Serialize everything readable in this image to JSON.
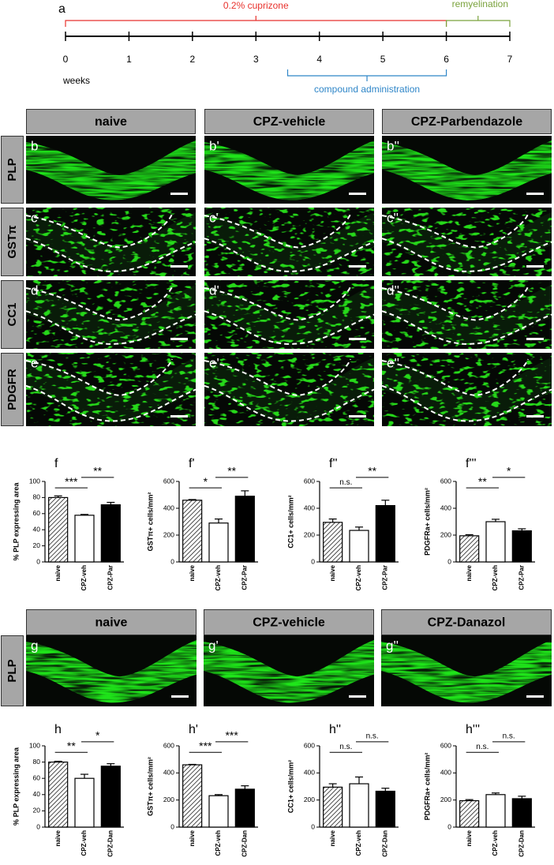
{
  "timeline": {
    "label": "a",
    "xlim": [
      0,
      7
    ],
    "xticks": [
      0,
      1,
      2,
      3,
      4,
      5,
      6,
      7
    ],
    "unit": "weeks",
    "ranges": [
      {
        "label": "0.2% cuprizone",
        "start": 0,
        "end": 6,
        "color": "#e8322d",
        "position": "above"
      },
      {
        "label": "remyelination",
        "start": 6,
        "end": 7,
        "color": "#7aa23c",
        "position": "above"
      },
      {
        "label": "compound administration",
        "start": 3.5,
        "end": 6,
        "color": "#2f86c8",
        "position": "below"
      }
    ]
  },
  "image_grids": [
    {
      "columns": [
        "naive",
        "CPZ-vehicle",
        "CPZ-Parbendazole"
      ],
      "rows": [
        {
          "label": "PLP",
          "panels": [
            "b",
            "b'",
            "b''"
          ],
          "outlined": false
        },
        {
          "label": "GSTπ",
          "panels": [
            "c",
            "c'",
            "c''"
          ],
          "outlined": true
        },
        {
          "label": "CC1",
          "panels": [
            "d",
            "d'",
            "d''"
          ],
          "outlined": true
        },
        {
          "label": "PDGFR",
          "panels": [
            "e",
            "e'",
            "e''"
          ],
          "outlined": true
        }
      ]
    },
    {
      "columns": [
        "naive",
        "CPZ-vehicle",
        "CPZ-Danazol"
      ],
      "rows": [
        {
          "label": "PLP",
          "panels": [
            "g",
            "g'",
            "g''"
          ],
          "outlined": false
        }
      ]
    }
  ],
  "chart_data": [
    {
      "type": "bar",
      "label": "f",
      "ylabel": "% PLP expressing area",
      "categories": [
        "naive",
        "CPZ-veh",
        "CPZ-Par"
      ],
      "values": [
        80,
        58,
        71
      ],
      "errors": [
        2,
        1,
        3
      ],
      "colors": [
        "#ffffff",
        "#ffffff",
        "#000000"
      ],
      "hatch": [
        true,
        false,
        false
      ],
      "ylim": [
        0,
        100
      ],
      "yticks": [
        0,
        20,
        40,
        60,
        80,
        100
      ],
      "annotations": [
        {
          "text": "***",
          "from": 0,
          "to": 1
        },
        {
          "text": "**",
          "from": 1,
          "to": 2
        }
      ]
    },
    {
      "type": "bar",
      "label": "f'",
      "ylabel": "GSTπ+ cells/mm²",
      "categories": [
        "naive",
        "CPZ-veh",
        "CPZ-Par"
      ],
      "values": [
        460,
        290,
        490
      ],
      "errors": [
        5,
        30,
        40
      ],
      "colors": [
        "#ffffff",
        "#ffffff",
        "#000000"
      ],
      "hatch": [
        true,
        false,
        false
      ],
      "ylim": [
        0,
        600
      ],
      "yticks": [
        0,
        200,
        400,
        600
      ],
      "annotations": [
        {
          "text": "*",
          "from": 0,
          "to": 1
        },
        {
          "text": "**",
          "from": 1,
          "to": 2
        }
      ]
    },
    {
      "type": "bar",
      "label": "f''",
      "ylabel": "CC1+ cells/mm²",
      "categories": [
        "naive",
        "CPZ-veh",
        "CPZ-Par"
      ],
      "values": [
        295,
        235,
        420
      ],
      "errors": [
        25,
        25,
        40
      ],
      "colors": [
        "#ffffff",
        "#ffffff",
        "#000000"
      ],
      "hatch": [
        true,
        false,
        false
      ],
      "ylim": [
        0,
        600
      ],
      "yticks": [
        0,
        200,
        400,
        600
      ],
      "annotations": [
        {
          "text": "n.s.",
          "from": 0,
          "to": 1
        },
        {
          "text": "**",
          "from": 1,
          "to": 2
        }
      ]
    },
    {
      "type": "bar",
      "label": "f'''",
      "ylabel": "PDGFRa+ cells/mm²",
      "categories": [
        "naive",
        "CPZ-veh",
        "CPZ-Par"
      ],
      "values": [
        195,
        300,
        232
      ],
      "errors": [
        8,
        18,
        15
      ],
      "colors": [
        "#ffffff",
        "#ffffff",
        "#000000"
      ],
      "hatch": [
        true,
        false,
        false
      ],
      "ylim": [
        0,
        600
      ],
      "yticks": [
        0,
        200,
        400,
        600
      ],
      "annotations": [
        {
          "text": "**",
          "from": 0,
          "to": 1
        },
        {
          "text": "*",
          "from": 1,
          "to": 2
        }
      ]
    },
    {
      "type": "bar",
      "label": "h",
      "ylabel": "% PLP expressing area",
      "categories": [
        "naive",
        "CPZ-veh",
        "CPZ-Dan"
      ],
      "values": [
        80,
        60,
        75
      ],
      "errors": [
        1,
        5,
        3
      ],
      "colors": [
        "#ffffff",
        "#ffffff",
        "#000000"
      ],
      "hatch": [
        true,
        false,
        false
      ],
      "ylim": [
        0,
        100
      ],
      "yticks": [
        0,
        20,
        40,
        60,
        80,
        100
      ],
      "annotations": [
        {
          "text": "**",
          "from": 0,
          "to": 1
        },
        {
          "text": "*",
          "from": 1,
          "to": 2
        }
      ]
    },
    {
      "type": "bar",
      "label": "h'",
      "ylabel": "GSTπ+ cells/mm²",
      "categories": [
        "naive",
        "CPZ-veh",
        "CPZ-Dan"
      ],
      "values": [
        460,
        232,
        280
      ],
      "errors": [
        3,
        8,
        25
      ],
      "colors": [
        "#ffffff",
        "#ffffff",
        "#000000"
      ],
      "hatch": [
        true,
        false,
        false
      ],
      "ylim": [
        0,
        600
      ],
      "yticks": [
        0,
        200,
        400,
        600
      ],
      "annotations": [
        {
          "text": "***",
          "from": 0,
          "to": 1
        },
        {
          "text": "***",
          "from": 1,
          "to": 2
        }
      ]
    },
    {
      "type": "bar",
      "label": "h''",
      "ylabel": "CC1+ cells/mm²",
      "categories": [
        "naive",
        "CPZ-veh",
        "CPZ-Dan"
      ],
      "values": [
        295,
        320,
        265
      ],
      "errors": [
        25,
        50,
        22
      ],
      "colors": [
        "#ffffff",
        "#ffffff",
        "#000000"
      ],
      "hatch": [
        true,
        false,
        false
      ],
      "ylim": [
        0,
        600
      ],
      "yticks": [
        0,
        200,
        400,
        600
      ],
      "annotations": [
        {
          "text": "n.s.",
          "from": 0,
          "to": 1
        },
        {
          "text": "n.s.",
          "from": 1,
          "to": 2
        }
      ]
    },
    {
      "type": "bar",
      "label": "h'''",
      "ylabel": "PDGFRa+ cells/mm²",
      "categories": [
        "naive",
        "CPZ-veh",
        "CPZ-Dan"
      ],
      "values": [
        195,
        240,
        210
      ],
      "errors": [
        8,
        12,
        18
      ],
      "colors": [
        "#ffffff",
        "#ffffff",
        "#000000"
      ],
      "hatch": [
        true,
        false,
        false
      ],
      "ylim": [
        0,
        600
      ],
      "yticks": [
        0,
        200,
        400,
        600
      ],
      "annotations": [
        {
          "text": "n.s.",
          "from": 0,
          "to": 1
        },
        {
          "text": "n.s.",
          "from": 1,
          "to": 2
        }
      ]
    }
  ]
}
